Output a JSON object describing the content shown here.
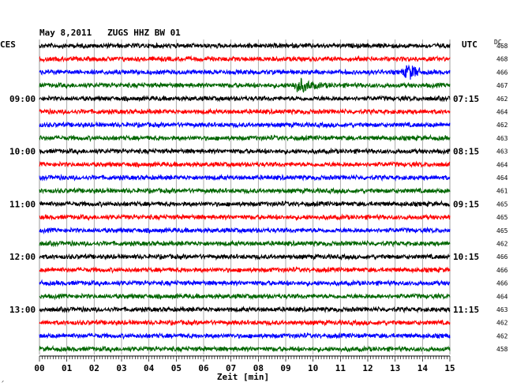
{
  "header": {
    "title": "May 8,2011   ZUGS HHZ BW 01",
    "left_zone": "CES",
    "right_zone": "UTC",
    "dc_label": "DC"
  },
  "chart_data": {
    "type": "line",
    "title": "May 8,2011   ZUGS HHZ BW 01",
    "xlabel": "Zeit [min]",
    "xlim": [
      0,
      15
    ],
    "x_ticks": [
      "00",
      "01",
      "02",
      "03",
      "04",
      "05",
      "06",
      "07",
      "08",
      "09",
      "10",
      "11",
      "12",
      "13",
      "14",
      "15"
    ],
    "grid": true,
    "trace_count": 24,
    "trace_colors": [
      "#000000",
      "#ff0000",
      "#0000ff",
      "#006600"
    ],
    "left_time_labels": [
      {
        "trace": 4,
        "label": "09:00"
      },
      {
        "trace": 8,
        "label": "10:00"
      },
      {
        "trace": 12,
        "label": "11:00"
      },
      {
        "trace": 16,
        "label": "12:00"
      },
      {
        "trace": 20,
        "label": "13:00"
      }
    ],
    "right_time_labels": [
      {
        "trace": 4,
        "label": "07:15"
      },
      {
        "trace": 8,
        "label": "08:15"
      },
      {
        "trace": 12,
        "label": "09:15"
      },
      {
        "trace": 16,
        "label": "10:15"
      },
      {
        "trace": 20,
        "label": "11:15"
      }
    ],
    "dc_values": [
      "468",
      "468",
      "466",
      "467",
      "462",
      "464",
      "462",
      "463",
      "463",
      "464",
      "464",
      "461",
      "465",
      "465",
      "465",
      "462",
      "466",
      "466",
      "466",
      "464",
      "463",
      "462",
      "462",
      "458"
    ],
    "events": [
      {
        "trace": 3,
        "start_min": 9.2,
        "peak_min": 9.5,
        "end_min": 11.0
      },
      {
        "trace": 2,
        "start_min": 13.2,
        "peak_min": 13.5,
        "end_min": 13.9
      }
    ]
  }
}
